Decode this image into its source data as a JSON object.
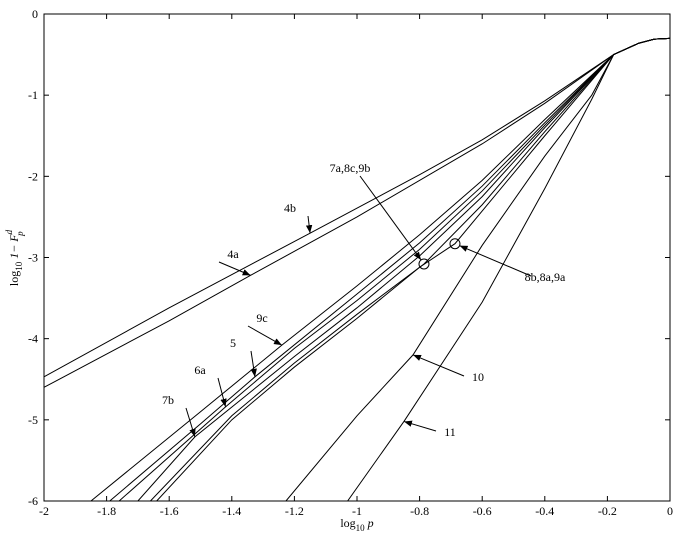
{
  "chart_data": {
    "type": "line",
    "xlabel": {
      "main": "log",
      "sub": "10",
      "rest": " p"
    },
    "ylabel": {
      "main": "log",
      "sub": "10",
      "rest": " 1− F",
      "sup": "d",
      "sub2": "p"
    },
    "xlim": [
      -2,
      0
    ],
    "ylim": [
      -6,
      0
    ],
    "xticks": [
      -2,
      -1.8,
      -1.6,
      -1.4,
      -1.2,
      -1,
      -0.8,
      -0.6,
      -0.4,
      -0.2,
      0
    ],
    "yticks": [
      -6,
      -5,
      -4,
      -3,
      -2,
      -1,
      0
    ],
    "series": [
      {
        "name": "4a",
        "color": "#000000",
        "x": [
          -2,
          -1.6,
          -1.34,
          -1,
          -0.6,
          -0.4,
          -0.18,
          -0.1,
          -0.05,
          0
        ],
        "values": [
          -4.6,
          -3.78,
          -3.22,
          -2.5,
          -1.6,
          -1.1,
          -0.5,
          -0.36,
          -0.31,
          -0.3
        ]
      },
      {
        "name": "4b",
        "color": "#000000",
        "x": [
          -2,
          -1.6,
          -1.15,
          -0.8,
          -0.6,
          -0.4,
          -0.18,
          -0.1,
          -0.05,
          0
        ],
        "values": [
          -4.47,
          -3.62,
          -2.7,
          -1.98,
          -1.55,
          -1.07,
          -0.5,
          -0.36,
          -0.31,
          -0.3
        ]
      },
      {
        "name": "9c",
        "color": "#000000",
        "x": [
          -1.85,
          -1.5,
          -1.24,
          -1,
          -0.8,
          -0.6,
          -0.4,
          -0.18,
          -0.1,
          -0.05,
          0
        ],
        "values": [
          -6,
          -4.9,
          -4.08,
          -3.35,
          -2.72,
          -2.05,
          -1.3,
          -0.5,
          -0.36,
          -0.31,
          -0.3
        ]
      },
      {
        "name": "5",
        "color": "#000000",
        "x": [
          -1.79,
          -1.5,
          -1.326,
          -1,
          -0.8,
          -0.6,
          -0.4,
          -0.18,
          -0.1,
          -0.05,
          0
        ],
        "values": [
          -6,
          -5.05,
          -4.47,
          -3.45,
          -2.82,
          -2.12,
          -1.34,
          -0.5,
          -0.36,
          -0.31,
          -0.3
        ]
      },
      {
        "name": "6a",
        "color": "#000000",
        "x": [
          -1.76,
          -1.42,
          -1.2,
          -1,
          -0.8,
          -0.6,
          -0.4,
          -0.18,
          -0.1,
          -0.05,
          0
        ],
        "values": [
          -6,
          -4.84,
          -4.12,
          -3.53,
          -2.9,
          -2.18,
          -1.37,
          -0.5,
          -0.36,
          -0.31,
          -0.3
        ]
      },
      {
        "name": "7b",
        "color": "#000000",
        "x": [
          -1.7,
          -1.518,
          -1.2,
          -1,
          -0.8,
          -0.6,
          -0.4,
          -0.18,
          -0.1,
          -0.05,
          0
        ],
        "values": [
          -6,
          -5.21,
          -4.22,
          -3.62,
          -2.98,
          -2.25,
          -1.4,
          -0.5,
          -0.36,
          -0.31,
          -0.3
        ]
      },
      {
        "name": "7a,8c,9b",
        "color": "#000000",
        "x": [
          -1.66,
          -1.4,
          -1.2,
          -1,
          -0.786,
          -0.6,
          -0.4,
          -0.18,
          -0.1,
          -0.05,
          0
        ],
        "values": [
          -6,
          -4.95,
          -4.3,
          -3.7,
          -3.08,
          -2.35,
          -1.45,
          -0.5,
          -0.36,
          -0.31,
          -0.3
        ]
      },
      {
        "name": "8b,8a,9a",
        "color": "#000000",
        "x": [
          -1.64,
          -1.4,
          -1.2,
          -1,
          -0.8,
          -0.687,
          -0.4,
          -0.18,
          -0.1,
          -0.05,
          0
        ],
        "values": [
          -6,
          -5.0,
          -4.35,
          -3.75,
          -3.12,
          -2.83,
          -1.5,
          -0.5,
          -0.36,
          -0.31,
          -0.3
        ]
      },
      {
        "name": "10",
        "color": "#000000",
        "x": [
          -1.227,
          -1,
          -0.821,
          -0.6,
          -0.4,
          -0.25,
          -0.18,
          -0.1,
          -0.05,
          0
        ],
        "values": [
          -6,
          -4.95,
          -4.2,
          -2.85,
          -1.75,
          -1.0,
          -0.5,
          -0.36,
          -0.31,
          -0.3
        ]
      },
      {
        "name": "11",
        "color": "#000000",
        "x": [
          -1.03,
          -0.85,
          -0.6,
          -0.4,
          -0.25,
          -0.18,
          -0.1,
          -0.05,
          0
        ],
        "values": [
          -6,
          -5.02,
          -3.55,
          -2.15,
          -1.05,
          -0.5,
          -0.36,
          -0.31,
          -0.3
        ]
      }
    ]
  }
}
